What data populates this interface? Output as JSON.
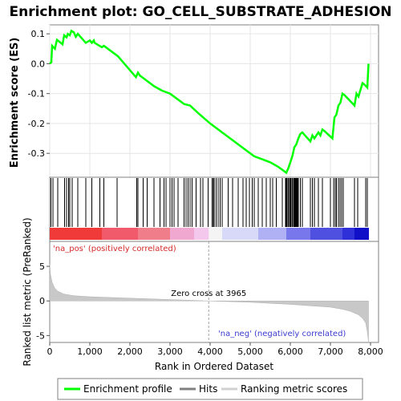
{
  "chart_data": {
    "type": "line",
    "title": "Enrichment plot: GO_CELL_SUBSTRATE_ADHESION",
    "es_panel": {
      "ylabel": "Enrichment score (ES)",
      "ylim": [
        -0.38,
        0.13
      ],
      "yticks": [
        0.1,
        0.0,
        -0.1,
        -0.2,
        -0.3
      ],
      "ytick_labels": [
        "0.1",
        "0.0",
        "-0.1",
        "-0.2",
        "-0.3"
      ],
      "grid": true,
      "series": [
        {
          "name": "Enrichment profile",
          "color": "#00ff00",
          "x": [
            0,
            40,
            60,
            130,
            180,
            320,
            360,
            420,
            450,
            500,
            540,
            600,
            650,
            700,
            900,
            1000,
            1050,
            1100,
            1120,
            1300,
            1350,
            1700,
            2150,
            2200,
            2250,
            2400,
            2600,
            2800,
            3000,
            3200,
            3350,
            3500,
            3700,
            4000,
            4300,
            4600,
            4900,
            5100,
            5300,
            5500,
            5700,
            5900,
            5950,
            6000,
            6050,
            6100,
            6150,
            6200,
            6250,
            6300,
            6500,
            6550,
            6600,
            6700,
            6750,
            6800,
            6850,
            7050,
            7100,
            7150,
            7200,
            7250,
            7300,
            7350,
            7600,
            7650,
            7700,
            7800,
            7850,
            7920,
            7950
          ],
          "y": [
            0.0,
            0.005,
            0.06,
            0.05,
            0.08,
            0.065,
            0.095,
            0.088,
            0.1,
            0.095,
            0.11,
            0.105,
            0.09,
            0.1,
            0.07,
            0.078,
            0.07,
            0.078,
            0.07,
            0.055,
            0.06,
            0.025,
            -0.045,
            -0.03,
            -0.04,
            -0.055,
            -0.075,
            -0.09,
            -0.1,
            -0.12,
            -0.135,
            -0.14,
            -0.165,
            -0.2,
            -0.23,
            -0.26,
            -0.29,
            -0.31,
            -0.32,
            -0.33,
            -0.345,
            -0.365,
            -0.35,
            -0.33,
            -0.31,
            -0.28,
            -0.27,
            -0.25,
            -0.235,
            -0.23,
            -0.26,
            -0.24,
            -0.25,
            -0.23,
            -0.24,
            -0.22,
            -0.225,
            -0.25,
            -0.18,
            -0.17,
            -0.14,
            -0.13,
            -0.1,
            -0.105,
            -0.14,
            -0.1,
            -0.11,
            -0.065,
            -0.07,
            -0.08,
            0.0
          ]
        }
      ]
    },
    "hits_panel": {
      "label": "Hits",
      "hit_ranks": [
        30,
        80,
        200,
        370,
        420,
        470,
        500,
        560,
        700,
        900,
        1050,
        1250,
        1350,
        1680,
        2170,
        2200,
        2330,
        2430,
        2600,
        2750,
        2850,
        2900,
        3000,
        3050,
        3100,
        3200,
        3350,
        3400,
        3450,
        3500,
        3550,
        3650,
        3760,
        3820,
        3950,
        4050,
        4080,
        4100,
        4150,
        4200,
        4250,
        4300,
        4450,
        4560,
        4700,
        4820,
        4900,
        4980,
        5050,
        5100,
        5200,
        5300,
        5400,
        5500,
        5560,
        5650,
        5800,
        5880,
        5900,
        5920,
        5950,
        5980,
        6000,
        6020,
        6050,
        6080,
        6100,
        6120,
        6140,
        6160,
        6180,
        6200,
        6250,
        6300,
        6500,
        6550,
        6600,
        6700,
        6800,
        7000,
        7080,
        7120,
        7150,
        7200,
        7240,
        7280,
        7320,
        7600,
        7680,
        7880,
        7920
      ]
    },
    "rank_panel": {
      "ylabel": "Ranked list metric (PreRanked)",
      "xlabel": "Rank in Ordered Dataset",
      "ylim": [
        -6,
        8.6
      ],
      "yticks": [
        5,
        0,
        -5
      ],
      "ytick_labels": [
        "5",
        "0",
        "-5"
      ],
      "xlim": [
        0,
        8200
      ],
      "xticks": [
        0,
        1000,
        2000,
        3000,
        4000,
        5000,
        6000,
        7000,
        8000
      ],
      "xtick_labels": [
        "0",
        "1,000",
        "2,000",
        "3,000",
        "4,000",
        "5,000",
        "6,000",
        "7,000",
        "8,000"
      ],
      "metric_color": "#c8c8c8",
      "zero_cross_rank": 3965,
      "zero_cross_label": "Zero cross at 3965",
      "pos_label": "'na_pos' (positively correlated)",
      "neg_label": "'na_neg' (negatively correlated)",
      "metric_profile": {
        "x": [
          0,
          20,
          60,
          120,
          200,
          350,
          600,
          1000,
          1500,
          2000,
          2500,
          3000,
          3500,
          3965,
          4500,
          5000,
          5500,
          6000,
          6500,
          7000,
          7300,
          7500,
          7700,
          7800,
          7880,
          7920,
          7950
        ],
        "y": [
          5.3,
          3.8,
          2.7,
          1.9,
          1.4,
          1.0,
          0.75,
          0.6,
          0.5,
          0.4,
          0.3,
          0.2,
          0.1,
          0.0,
          -0.1,
          -0.2,
          -0.35,
          -0.5,
          -0.7,
          -0.9,
          -1.2,
          -1.5,
          -2.0,
          -2.5,
          -3.2,
          -4.5,
          -5.9
        ]
      }
    },
    "colorbar": {
      "x_max": 7950,
      "stops": [
        {
          "rank": 0,
          "color": "#f03a3a"
        },
        {
          "rank": 1300,
          "color": "#f05a6a"
        },
        {
          "rank": 2200,
          "color": "#f07d8a"
        },
        {
          "rank": 3000,
          "color": "#f0a8d0"
        },
        {
          "rank": 3600,
          "color": "#f4c8ec"
        },
        {
          "rank": 3965,
          "color": "#f4f4f4"
        },
        {
          "rank": 4300,
          "color": "#d8d8f8"
        },
        {
          "rank": 5200,
          "color": "#b0b0f4"
        },
        {
          "rank": 5900,
          "color": "#7878ec"
        },
        {
          "rank": 6500,
          "color": "#5050e0"
        },
        {
          "rank": 7300,
          "color": "#3030d8"
        },
        {
          "rank": 7600,
          "color": "#1010c8"
        },
        {
          "rank": 7950,
          "color": "#0000b4"
        }
      ]
    },
    "legend": {
      "position": "bottom",
      "entries": [
        {
          "label": "Enrichment profile",
          "color": "#00ff00"
        },
        {
          "label": "Hits",
          "color": "#000000"
        },
        {
          "label": "Ranking metric scores",
          "color": "#c8c8c8"
        }
      ]
    }
  }
}
